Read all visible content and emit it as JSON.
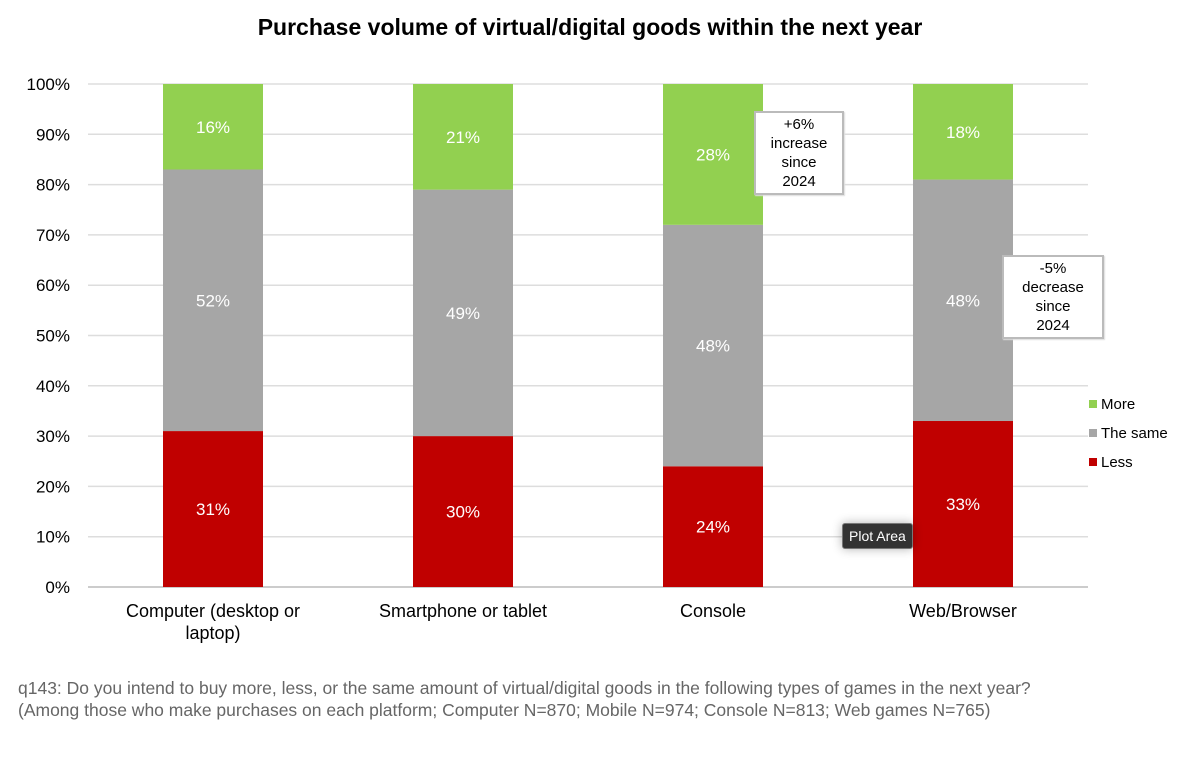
{
  "chart_data": {
    "type": "bar",
    "stacked": true,
    "title": "Purchase volume of virtual/digital goods within the next year",
    "categories": [
      [
        "Computer (desktop or",
        "laptop)"
      ],
      [
        "Smartphone or tablet"
      ],
      [
        "Console"
      ],
      [
        "Web/Browser"
      ]
    ],
    "series": [
      {
        "name": "Less",
        "color": "#c00000",
        "values": [
          31,
          30,
          24,
          33
        ],
        "labels": [
          "31%",
          "30%",
          "24%",
          "33%"
        ]
      },
      {
        "name": "The same",
        "color": "#a6a6a6",
        "values": [
          52,
          49,
          48,
          48
        ],
        "labels": [
          "52%",
          "49%",
          "48%",
          "48%"
        ]
      },
      {
        "name": "More",
        "color": "#92d050",
        "values": [
          16,
          21,
          28,
          18
        ],
        "labels": [
          "16%",
          "21%",
          "28%",
          "18%"
        ]
      }
    ],
    "legend_order": [
      "More",
      "The same",
      "Less"
    ],
    "legend_position": "right",
    "ylim": [
      0,
      100
    ],
    "yticks": [
      "0%",
      "10%",
      "20%",
      "30%",
      "40%",
      "50%",
      "60%",
      "70%",
      "80%",
      "90%",
      "100%"
    ],
    "grid": true,
    "annotations": [
      {
        "text": [
          "+6%",
          "increase",
          "since",
          "2024"
        ],
        "category": "Console"
      },
      {
        "text": [
          "-5%",
          "decrease",
          "since",
          "2024"
        ],
        "category": "Web/Browser"
      }
    ]
  },
  "tooltip": "Plot Area",
  "footnote": {
    "line1": "q143: Do you intend to buy more, less, or the same amount of virtual/digital goods in the following types of games in the next year?",
    "line2": "(Among those who make purchases on each platform; Computer N=870; Mobile N=974; Console N=813; Web games N=765)"
  }
}
